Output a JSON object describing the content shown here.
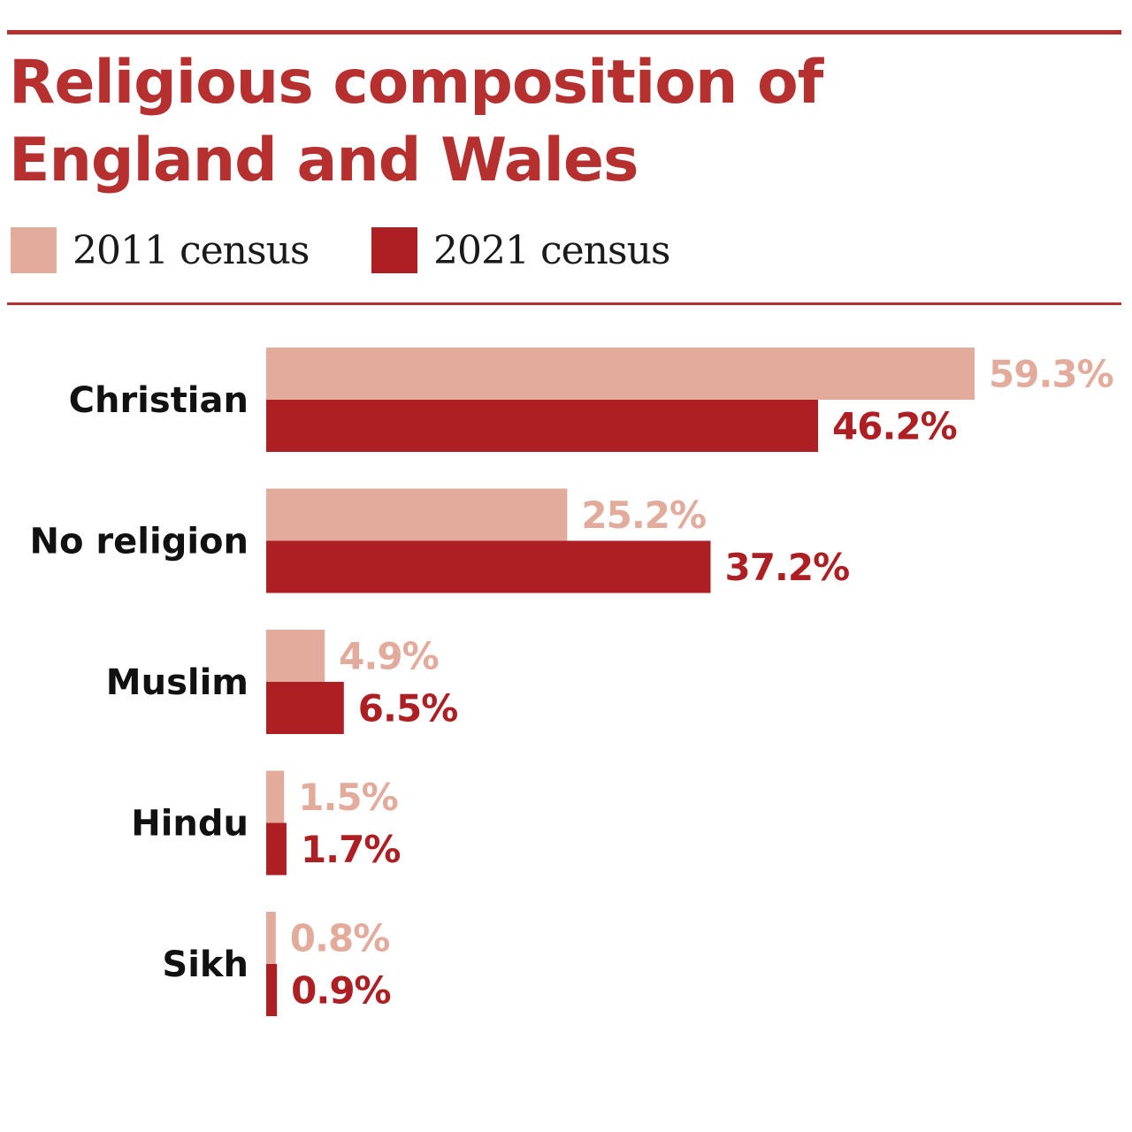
{
  "title_line1": "Religious composition of",
  "title_line2": "England and Wales",
  "legend": [
    {
      "label": "2011 census",
      "color": "#e3ab9b"
    },
    {
      "label": "2021 census",
      "color": "#ae1f23"
    }
  ],
  "colors": {
    "accent": "#b5302f",
    "series_2011": "#e3ab9b",
    "series_2021": "#ae1f23",
    "label_2011": "#e3ab9b",
    "label_2021": "#ae1f23"
  },
  "chart_data": {
    "type": "bar",
    "orientation": "horizontal",
    "title": "Religious composition of England and Wales",
    "categories": [
      "Christian",
      "No religion",
      "Muslim",
      "Hindu",
      "Sikh"
    ],
    "series": [
      {
        "name": "2011 census",
        "values": [
          59.3,
          25.2,
          4.9,
          1.5,
          0.8
        ],
        "labels": [
          "59.3%",
          "25.2%",
          "4.9%",
          "1.5%",
          "0.8%"
        ]
      },
      {
        "name": "2021 census",
        "values": [
          46.2,
          37.2,
          6.5,
          1.7,
          0.9
        ],
        "labels": [
          "46.2%",
          "37.2%",
          "6.5%",
          "1.7%",
          "0.9%"
        ]
      }
    ],
    "unit": "%",
    "xlim": [
      0,
      59.3
    ],
    "grid": false,
    "legend_position": "top-left"
  }
}
